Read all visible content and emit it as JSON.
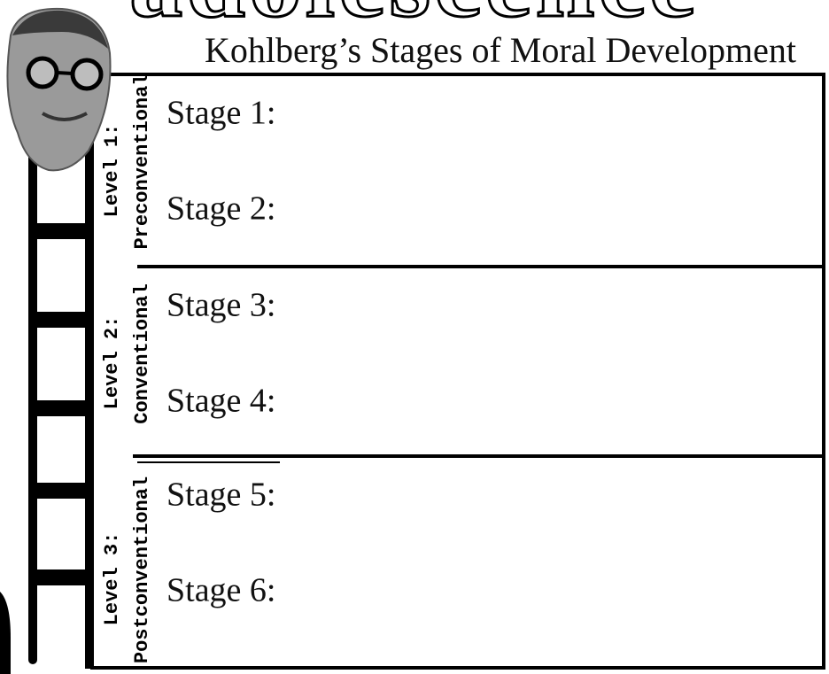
{
  "banner": "adolescence",
  "title": "Kohlberg’s Stages of Moral Development",
  "levels": [
    {
      "level": "Level 1:",
      "name": "Preconventional",
      "stages": [
        "Stage 1:",
        "Stage 2:"
      ]
    },
    {
      "level": "Level 2:",
      "name": "Conventional",
      "stages": [
        "Stage 3:",
        "Stage 4:"
      ]
    },
    {
      "level": "Level 3:",
      "name": "Postconventional",
      "stages": [
        "Stage 5:",
        "Stage 6:"
      ]
    }
  ]
}
